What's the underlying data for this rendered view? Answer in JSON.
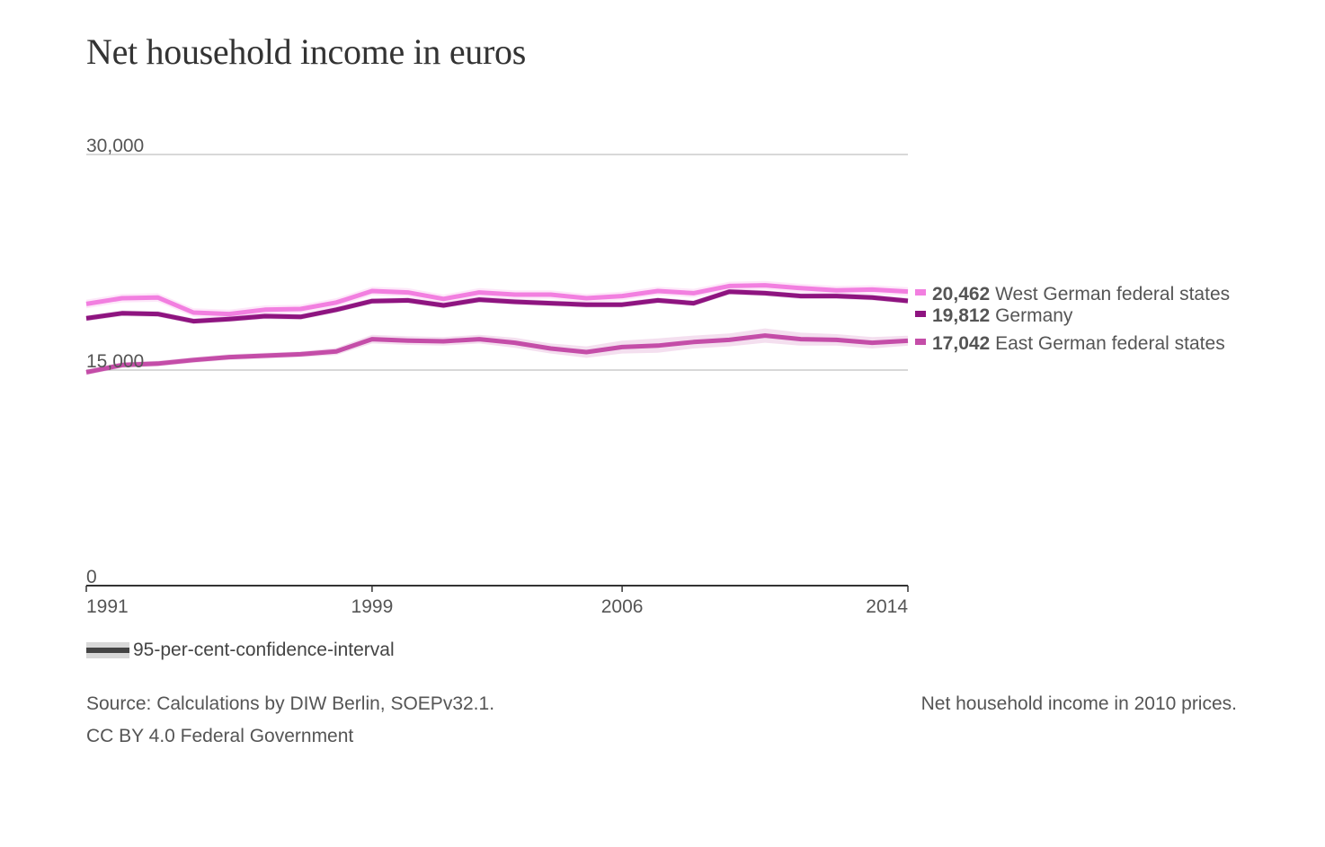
{
  "chart_data": {
    "type": "line",
    "title": "Net household income in euros",
    "x": [
      1991,
      1992,
      1993,
      1994,
      1995,
      1996,
      1997,
      1998,
      1999,
      2000,
      2001,
      2002,
      2003,
      2004,
      2005,
      2006,
      2007,
      2008,
      2009,
      2010,
      2011,
      2012,
      2013,
      2014
    ],
    "xticks": [
      "1991",
      "1999",
      "2006",
      "2014"
    ],
    "yticks": [
      {
        "value": 0,
        "label": "0"
      },
      {
        "value": 15000,
        "label": "15,000"
      },
      {
        "value": 30000,
        "label": "30,000"
      }
    ],
    "ylim": [
      0,
      30000
    ],
    "series": [
      {
        "name": "West German federal states",
        "end_label": "20,462",
        "color": "#f27fe0",
        "values": [
          19600,
          20000,
          20050,
          19000,
          18900,
          19200,
          19250,
          19700,
          20500,
          20400,
          19950,
          20400,
          20250,
          20250,
          20000,
          20150,
          20500,
          20350,
          20850,
          20900,
          20700,
          20550,
          20600,
          20462
        ],
        "ci": [
          300,
          300,
          300,
          300,
          300,
          300,
          300,
          300,
          300,
          300,
          300,
          300,
          300,
          300,
          300,
          300,
          300,
          300,
          300,
          300,
          300,
          300,
          300,
          300
        ]
      },
      {
        "name": "Germany",
        "end_label": "19,812",
        "color": "#8e1480",
        "values": [
          18600,
          18950,
          18900,
          18400,
          18550,
          18750,
          18700,
          19200,
          19800,
          19850,
          19500,
          19900,
          19750,
          19650,
          19550,
          19550,
          19850,
          19650,
          20450,
          20350,
          20150,
          20150,
          20050,
          19812
        ],
        "ci": [
          200,
          200,
          200,
          200,
          200,
          200,
          200,
          200,
          200,
          200,
          200,
          200,
          200,
          200,
          200,
          200,
          200,
          200,
          200,
          200,
          200,
          200,
          200,
          200
        ]
      },
      {
        "name": "East German federal states",
        "end_label": "17,042",
        "color": "#c44da8",
        "values": [
          14850,
          15350,
          15450,
          15700,
          15900,
          16000,
          16100,
          16300,
          17150,
          17050,
          17000,
          17150,
          16900,
          16500,
          16250,
          16600,
          16700,
          16950,
          17100,
          17400,
          17150,
          17100,
          16900,
          17042
        ],
        "ci": [
          200,
          200,
          200,
          200,
          200,
          200,
          200,
          250,
          300,
          300,
          300,
          300,
          350,
          350,
          400,
          450,
          500,
          450,
          450,
          500,
          450,
          400,
          400,
          350
        ]
      }
    ],
    "ci_legend": "95-per-cent-confidence-interval",
    "source": "Source: Calculations by DIW Berlin, SOEPv32.1.",
    "license": "CC BY 4.0 Federal Government",
    "note": "Net household income in 2010 prices."
  }
}
